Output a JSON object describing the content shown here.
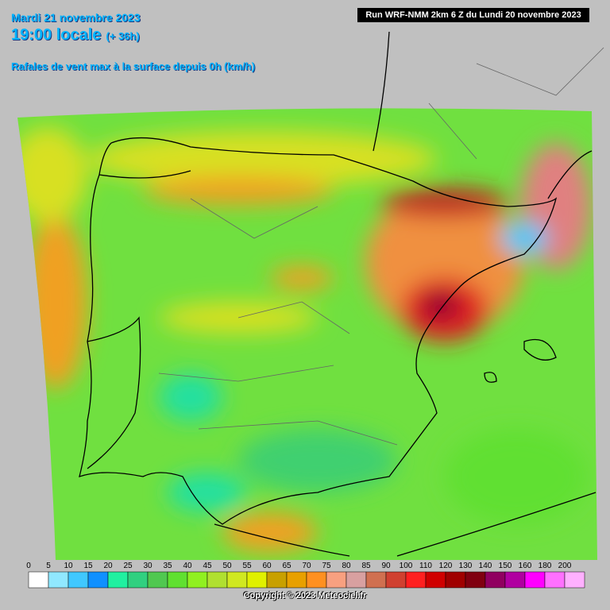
{
  "header": {
    "date": "Mardi 21 novembre 2023",
    "time": "19:00 locale",
    "lead": "(+ 36h)",
    "subtitle": "Rafales de vent max à la surface depuis 0h (km/h)",
    "run": "Run WRF-NMM 2km 6 Z du Lundi 20 novembre 2023"
  },
  "legend": {
    "labels": [
      "0",
      "5",
      "10",
      "15",
      "20",
      "25",
      "30",
      "35",
      "40",
      "45",
      "50",
      "55",
      "60",
      "65",
      "70",
      "75",
      "80",
      "85",
      "90",
      "100",
      "110",
      "120",
      "130",
      "140",
      "150",
      "160",
      "180",
      "200"
    ],
    "colors": [
      "#ffffff",
      "#90e8ff",
      "#40c8ff",
      "#1090ff",
      "#20f0a0",
      "#30d080",
      "#50c850",
      "#60e030",
      "#90f020",
      "#b0e030",
      "#d0e820",
      "#e0f000",
      "#c8a000",
      "#e8a000",
      "#ff9020",
      "#f8a080",
      "#d8a0a0",
      "#d07050",
      "#d04030",
      "#ff2020",
      "#d00000",
      "#a00000",
      "#800010",
      "#900060",
      "#b000a0",
      "#ff00ff",
      "#ff70ff",
      "#ffb0ff"
    ]
  },
  "copyright": "Copyright © 2023 Meteociel.fr"
}
